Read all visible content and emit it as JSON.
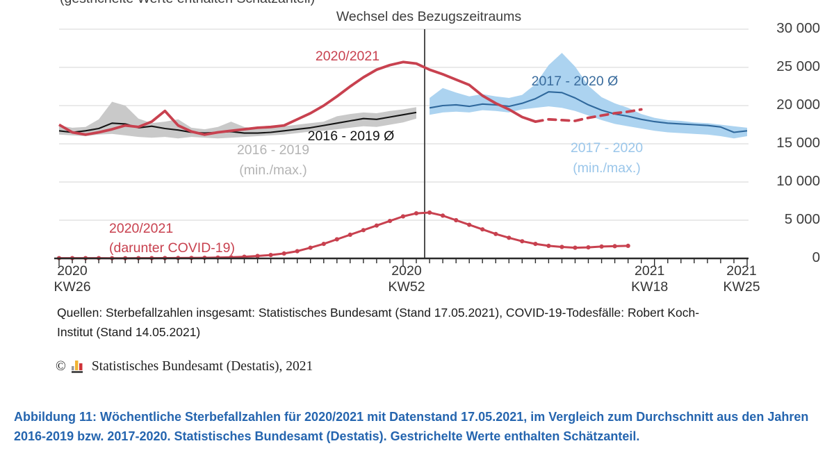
{
  "page": {
    "background": "#ffffff"
  },
  "chart_data": {
    "type": "line",
    "title": "Wechsel des Bezugszeitraums",
    "clipped_header": "(gestrichelte Werte enthalten Schätzanteil)",
    "y_axis": {
      "side": "right",
      "range": [
        0,
        30000
      ],
      "ticks": [
        0,
        5000,
        10000,
        15000,
        20000,
        25000,
        30000
      ],
      "tick_labels": [
        "0",
        "5 000",
        "10 000",
        "15 000",
        "20 000",
        "25 000",
        "30 000"
      ],
      "grid": true
    },
    "x_axis": {
      "unit": "Kalenderwoche",
      "weeks": [
        "2020-KW26",
        "2020-KW27",
        "2020-KW28",
        "2020-KW29",
        "2020-KW30",
        "2020-KW31",
        "2020-KW32",
        "2020-KW33",
        "2020-KW34",
        "2020-KW35",
        "2020-KW36",
        "2020-KW37",
        "2020-KW38",
        "2020-KW39",
        "2020-KW40",
        "2020-KW41",
        "2020-KW42",
        "2020-KW43",
        "2020-KW44",
        "2020-KW45",
        "2020-KW46",
        "2020-KW47",
        "2020-KW48",
        "2020-KW49",
        "2020-KW50",
        "2020-KW51",
        "2020-KW52",
        "2020-KW53",
        "2021-KW01",
        "2021-KW02",
        "2021-KW03",
        "2021-KW04",
        "2021-KW05",
        "2021-KW06",
        "2021-KW07",
        "2021-KW08",
        "2021-KW09",
        "2021-KW10",
        "2021-KW11",
        "2021-KW12",
        "2021-KW13",
        "2021-KW14",
        "2021-KW15",
        "2021-KW16",
        "2021-KW17",
        "2021-KW18",
        "2021-KW19",
        "2021-KW20",
        "2021-KW21",
        "2021-KW22",
        "2021-KW23",
        "2021-KW24",
        "2021-KW25"
      ],
      "shown_ticks": [
        {
          "index": 0,
          "line1": "2020",
          "line2": "KW26"
        },
        {
          "index": 26,
          "line1": "2020",
          "line2": "KW52"
        },
        {
          "index": 45,
          "line1": "2021",
          "line2": "KW18"
        },
        {
          "index": 52,
          "line1": "2021",
          "line2": "KW25"
        }
      ]
    },
    "reference_line": {
      "label": "Wechsel des Bezugszeitraums",
      "between_weeks": [
        "2020-KW53",
        "2021-KW01"
      ]
    },
    "series": [
      {
        "id": "deaths_2020_2021",
        "name": "2020/2021",
        "type": "line",
        "color": "#c8414f",
        "start_index": 0,
        "solid_until_index": 36,
        "dashed_note": "gestrichelte Werte enthalten Schätzanteil",
        "values": [
          17500,
          16500,
          16200,
          16500,
          16900,
          17400,
          17200,
          17900,
          19300,
          17400,
          16600,
          16200,
          16500,
          16700,
          16900,
          17100,
          17200,
          17400,
          18200,
          19000,
          20000,
          21200,
          22500,
          23700,
          24700,
          25300,
          25700,
          25500,
          24700,
          24100,
          23400,
          22700,
          21300,
          20300,
          19500,
          18500,
          17900,
          18200,
          18100,
          18000,
          18400,
          18700,
          19000,
          19200,
          19500
        ]
      },
      {
        "id": "avg_2016_2019",
        "name": "2016 - 2019 Ø",
        "type": "line",
        "color": "#141414",
        "start_index": 0,
        "values": [
          16700,
          16500,
          16700,
          17000,
          17700,
          17600,
          17100,
          17300,
          17000,
          16800,
          16500,
          16400,
          16500,
          16600,
          16400,
          16400,
          16500,
          16700,
          16900,
          17100,
          17400,
          17700,
          18000,
          18300,
          18200,
          18500,
          18800,
          19100
        ]
      },
      {
        "id": "minmax_2016_2019",
        "name": "2016 - 2019 (min./max.)",
        "type": "band",
        "color": "#c9c9c9",
        "start_index": 0,
        "max": [
          17400,
          17100,
          17200,
          18200,
          20500,
          20000,
          18300,
          17700,
          17900,
          18200,
          17100,
          16900,
          17200,
          17900,
          17200,
          17000,
          17100,
          17300,
          17500,
          17700,
          17900,
          18600,
          18900,
          19100,
          19000,
          19300,
          19500,
          19800
        ],
        "min": [
          16200,
          16100,
          16000,
          16200,
          16300,
          16100,
          15900,
          15800,
          15900,
          15700,
          15900,
          15800,
          15700,
          15800,
          15900,
          16000,
          16100,
          16200,
          16400,
          16600,
          16700,
          16900,
          17100,
          17300,
          17200,
          17500,
          17800,
          18300
        ]
      },
      {
        "id": "avg_2017_2020",
        "name": "2017 - 2020 Ø",
        "type": "line",
        "color": "#2f689c",
        "start_index": 28,
        "values": [
          19700,
          20000,
          20100,
          19900,
          20200,
          20100,
          19900,
          20300,
          20900,
          21800,
          21700,
          21000,
          20100,
          19400,
          18900,
          18600,
          18200,
          17900,
          17700,
          17600,
          17500,
          17400,
          17200,
          16500,
          16700
        ]
      },
      {
        "id": "minmax_2017_2020",
        "name": "2017 - 2020 (min./max.)",
        "type": "band",
        "color": "#acd3f0",
        "start_index": 28,
        "max": [
          21000,
          22300,
          21700,
          21200,
          21500,
          21200,
          21000,
          21400,
          22800,
          25300,
          26900,
          25100,
          22600,
          21100,
          20300,
          19700,
          18900,
          18400,
          18100,
          18000,
          17800,
          17700,
          17500,
          17300,
          17100
        ],
        "min": [
          18800,
          19100,
          19200,
          19100,
          19400,
          19300,
          19100,
          19500,
          19700,
          19900,
          19700,
          19300,
          18700,
          18100,
          17600,
          17300,
          17000,
          16700,
          16500,
          16400,
          16300,
          16200,
          16000,
          15700,
          16000
        ]
      },
      {
        "id": "covid_2020_2021",
        "name": "2020/2021 (darunter COVID-19)",
        "type": "line_markers",
        "color": "#c8414f",
        "start_index": 0,
        "values": [
          40,
          40,
          35,
          35,
          30,
          30,
          35,
          40,
          45,
          50,
          60,
          80,
          110,
          150,
          220,
          320,
          450,
          650,
          950,
          1400,
          1900,
          2500,
          3100,
          3700,
          4300,
          4900,
          5500,
          5900,
          6000,
          5600,
          5000,
          4400,
          3800,
          3200,
          2700,
          2250,
          1900,
          1650,
          1500,
          1400,
          1450,
          1550,
          1600,
          1650
        ]
      }
    ],
    "annotations": {
      "red_label": "2020/2021",
      "blue_avg_label": "2017 - 2020 Ø",
      "black_avg_label": "2016 - 2019 Ø",
      "gray_minmax_label_line1": "2016 - 2019",
      "gray_minmax_label_line2": "(min./max.)",
      "blue_minmax_label_line1": "2017 - 2020",
      "blue_minmax_label_line2": "(min./max.)",
      "covid_label_line1": "2020/2021",
      "covid_label_line2": "(darunter COVID-19)"
    },
    "colors": {
      "red": "#c8414f",
      "black_line": "#141414",
      "gray_band": "#c9c9c9",
      "blue_line": "#2f689c",
      "blue_band": "#acd3f0",
      "grid": "#dddddd",
      "axis": "#2a2a2a",
      "reference_line": "#3b3b3b"
    }
  },
  "footer": {
    "sources_line1": "Quellen: Sterbefallzahlen insgesamt: Statistisches Bundesamt (Stand 17.05.2021), COVID-19-Todesfälle: Robert Koch-",
    "sources_line2": "Institut (Stand 14.05.2021)",
    "copyright_symbol": "©",
    "copyright_text": "Statistisches Bundesamt (Destatis), 2021",
    "caption_line1": "Abbildung 11: Wöchentliche Sterbefallzahlen für 2020/2021 mit Datenstand 17.05.2021, im Vergleich zum Durchschnitt aus den Jahren",
    "caption_line2": "2016-2019 bzw. 2017-2020. Statistisches Bundesamt (Destatis). Gestrichelte Werte enthalten Schätzanteil."
  }
}
